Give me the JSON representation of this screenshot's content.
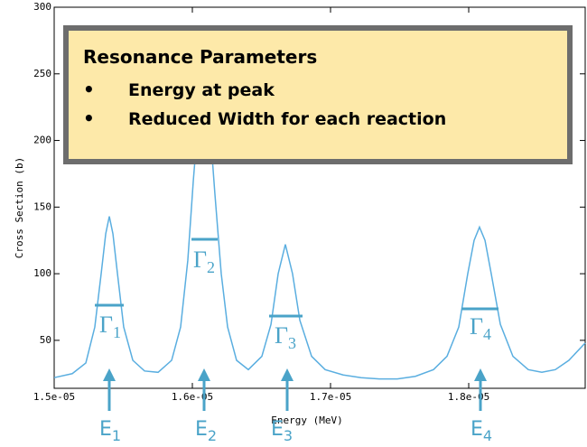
{
  "chart_data": {
    "type": "line",
    "xlabel": "Energy (MeV)",
    "ylabel": "Cross Section (b)",
    "color": "#5aaee0",
    "x": [
      1.5e-05,
      1.5131e-05,
      1.5229e-05,
      1.5294e-05,
      1.534e-05,
      1.5373e-05,
      1.5399e-05,
      1.5425e-05,
      1.5458e-05,
      1.5503e-05,
      1.5569e-05,
      1.5654e-05,
      1.5752e-05,
      1.585e-05,
      1.5915e-05,
      1.5967e-05,
      1.6007e-05,
      1.6046e-05,
      1.6085e-05,
      1.6124e-05,
      1.6163e-05,
      1.6209e-05,
      1.6255e-05,
      1.632e-05,
      1.6405e-05,
      1.6503e-05,
      1.6569e-05,
      1.6621e-05,
      1.6673e-05,
      1.6725e-05,
      1.6778e-05,
      1.6863e-05,
      1.6961e-05,
      1.7092e-05,
      1.7222e-05,
      1.7353e-05,
      1.7484e-05,
      1.7614e-05,
      1.7745e-05,
      1.7843e-05,
      1.7928e-05,
      1.7993e-05,
      1.8039e-05,
      1.8078e-05,
      1.8118e-05,
      1.8163e-05,
      1.8229e-05,
      1.832e-05,
      1.8431e-05,
      1.8529e-05,
      1.8627e-05,
      1.8725e-05,
      1.8843e-05
    ],
    "values": [
      22,
      25,
      33,
      60,
      100,
      130,
      143,
      130,
      100,
      60,
      35,
      27,
      26,
      35,
      60,
      110,
      170,
      220,
      235,
      215,
      160,
      100,
      60,
      35,
      28,
      38,
      62,
      100,
      122,
      100,
      65,
      38,
      28,
      24,
      22,
      21,
      21,
      23,
      28,
      38,
      60,
      100,
      125,
      135,
      125,
      100,
      62,
      38,
      28,
      26,
      28,
      35,
      48
    ],
    "xlim": [
      1.5e-05,
      1.8843e-05
    ],
    "xticks": [
      {
        "value": 1.5e-05,
        "label": "1.5e-05"
      },
      {
        "value": 1.6e-05,
        "label": "1.6e-05"
      },
      {
        "value": 1.7e-05,
        "label": "1.7e-05"
      },
      {
        "value": 1.8e-05,
        "label": "1.8e-05"
      }
    ],
    "ylim": [
      14,
      300
    ],
    "yticks": [
      50,
      100,
      150,
      200,
      250,
      300
    ],
    "box": {
      "title": "Resonance Parameters",
      "bullets": [
        "Energy at peak",
        "Reduced Width for each reaction"
      ]
    },
    "widths": [
      {
        "symbol": "Γ",
        "subscript": "1"
      },
      {
        "symbol": "Γ",
        "subscript": "2"
      },
      {
        "symbol": "Γ",
        "subscript": "3"
      },
      {
        "symbol": "Γ",
        "subscript": "4"
      }
    ],
    "peaks": [
      {
        "symbol": "E",
        "subscript": "1"
      },
      {
        "symbol": "E",
        "subscript": "2"
      },
      {
        "symbol": "E",
        "subscript": "3"
      },
      {
        "symbol": "E",
        "subscript": "4"
      }
    ]
  }
}
